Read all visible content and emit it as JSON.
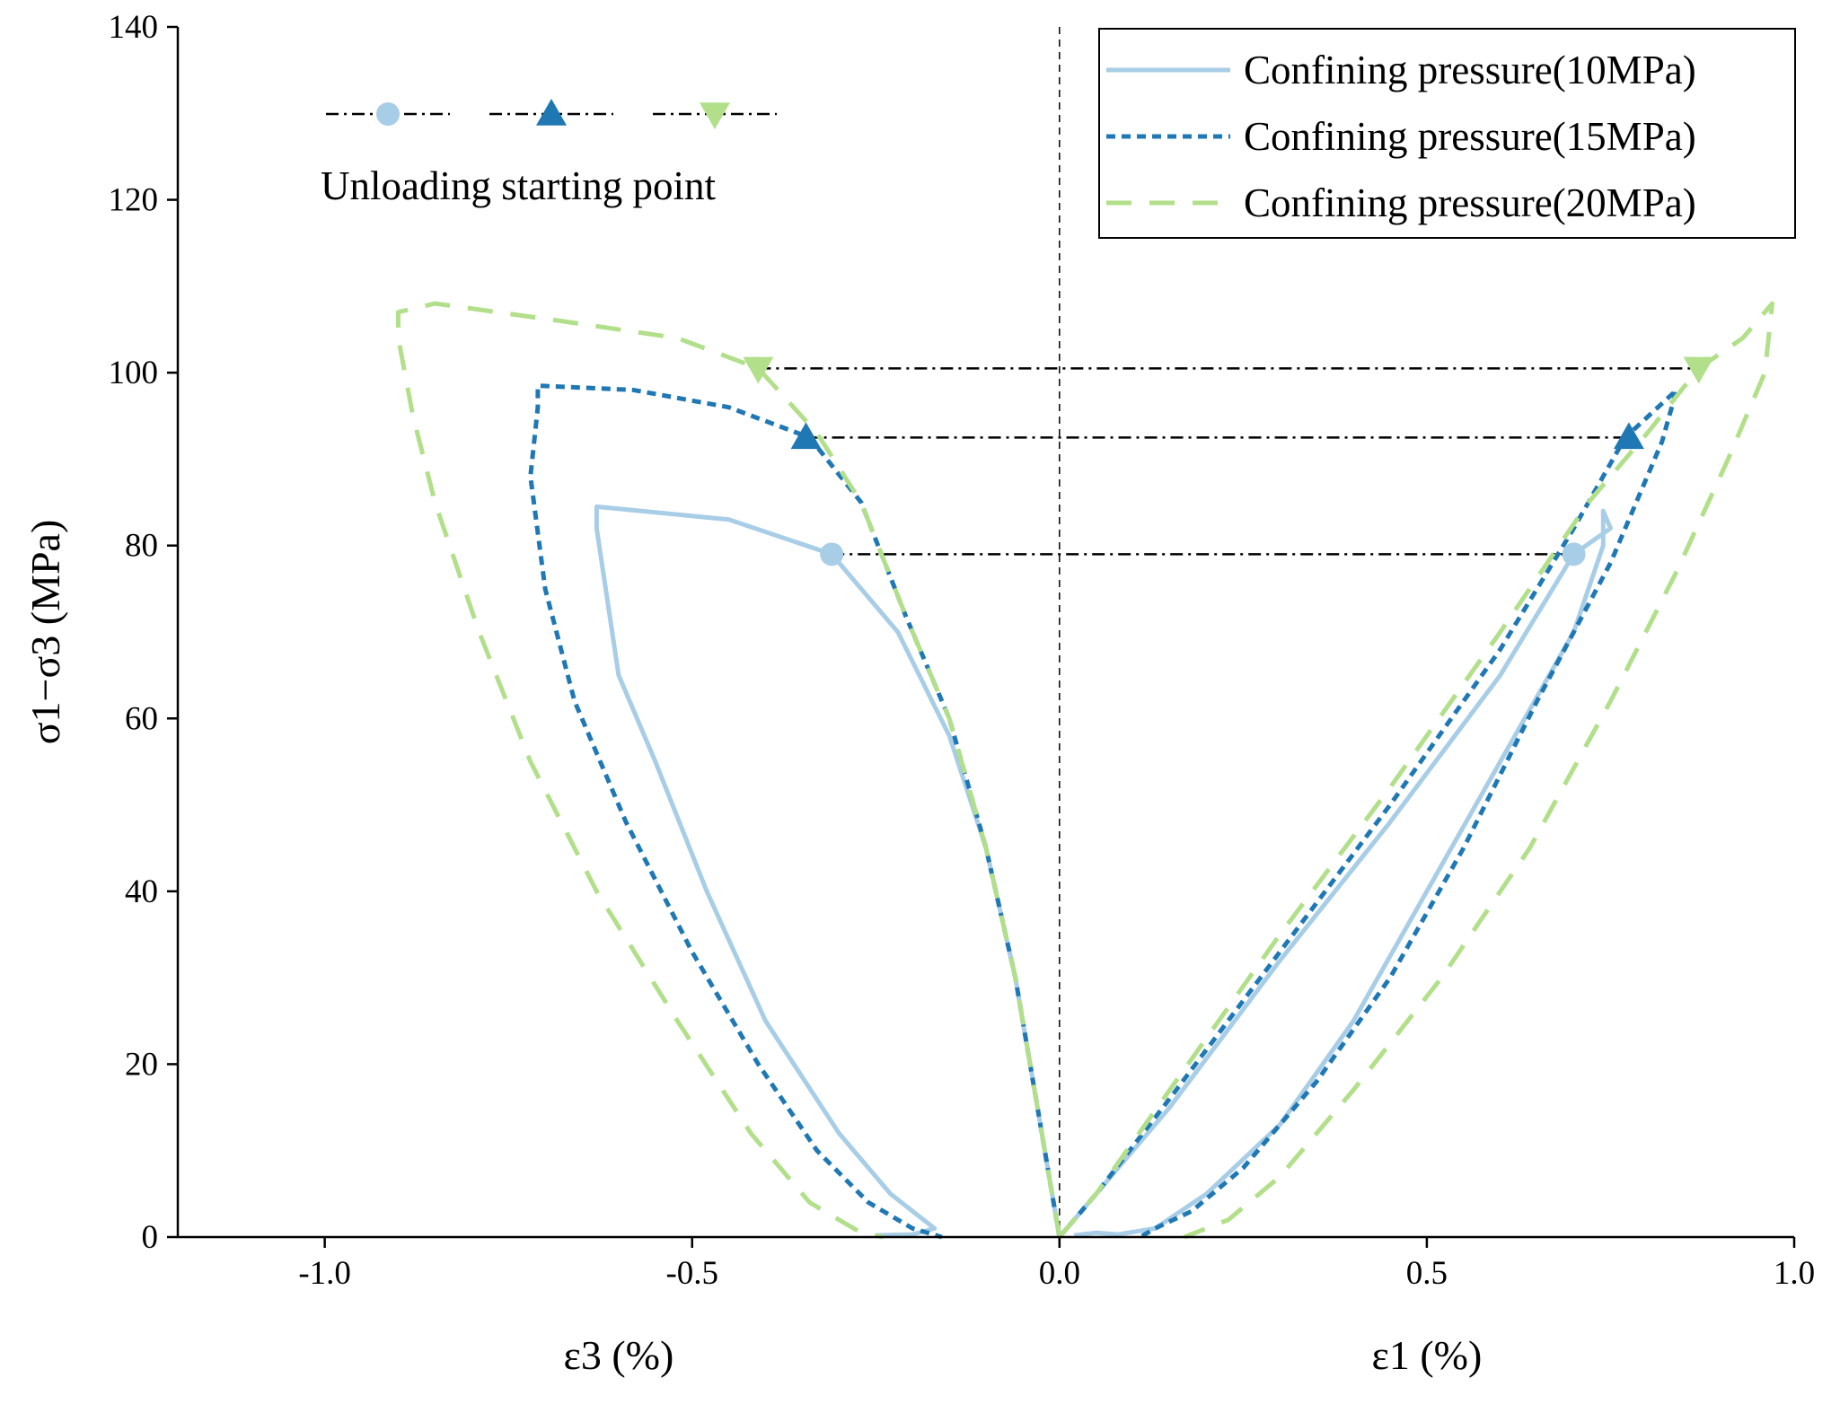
{
  "chart_data": {
    "type": "line",
    "title": "",
    "xlim": [
      -1.2,
      1.0
    ],
    "ylim": [
      0,
      140
    ],
    "xticks": [
      "-1.0",
      "-0.5",
      "0.0",
      "0.5",
      "1.0"
    ],
    "xtick_values": [
      -1.0,
      -0.5,
      0.0,
      0.5,
      1.0
    ],
    "yticks": [
      "0",
      "20",
      "40",
      "60",
      "80",
      "100",
      "120",
      "140"
    ],
    "ytick_values": [
      0,
      20,
      40,
      60,
      80,
      100,
      120,
      140
    ],
    "ylabel": "σ1−σ3 (MPa)",
    "xlabel_left": "ε3 (%)",
    "xlabel_right": "ε1 (%)",
    "legend_position": "top-right",
    "zero_line_x": 0,
    "colors": {
      "light_blue": "#a8cde6",
      "dark_blue": "#1f78b4",
      "light_green": "#b2df8a",
      "ref_line": "#000000"
    },
    "series": [
      {
        "name": "Confining pressure(10MPa)",
        "color": "#a8cde6",
        "dash": "solid",
        "segments": [
          [
            [
              0.0,
              0
            ],
            [
              0.05,
              5
            ],
            [
              0.15,
              15
            ],
            [
              0.3,
              32
            ],
            [
              0.45,
              48
            ],
            [
              0.6,
              65
            ],
            [
              0.7,
              79
            ],
            [
              0.75,
              82
            ],
            [
              0.74,
              84
            ],
            [
              0.74,
              80
            ],
            [
              0.7,
              70
            ],
            [
              0.6,
              55
            ],
            [
              0.5,
              40
            ],
            [
              0.4,
              25
            ],
            [
              0.3,
              13
            ],
            [
              0.2,
              5
            ],
            [
              0.13,
              1
            ],
            [
              0.08,
              0.3
            ],
            [
              0.05,
              0.5
            ],
            [
              0.02,
              0.2
            ]
          ],
          [
            [
              0.0,
              0
            ],
            [
              -0.01,
              5
            ],
            [
              -0.03,
              15
            ],
            [
              -0.06,
              30
            ],
            [
              -0.1,
              45
            ],
            [
              -0.15,
              58
            ],
            [
              -0.22,
              70
            ],
            [
              -0.31,
              79
            ],
            [
              -0.45,
              83
            ],
            [
              -0.63,
              84.5
            ],
            [
              -0.63,
              82
            ],
            [
              -0.6,
              65
            ],
            [
              -0.55,
              55
            ],
            [
              -0.48,
              40
            ],
            [
              -0.4,
              25
            ],
            [
              -0.3,
              12
            ],
            [
              -0.23,
              5
            ],
            [
              -0.17,
              1
            ],
            [
              -0.2,
              0.3
            ],
            [
              -0.25,
              0.2
            ]
          ]
        ]
      },
      {
        "name": "Confining pressure(15MPa)",
        "color": "#1f78b4",
        "dash": "short",
        "segments": [
          [
            [
              0.0,
              0
            ],
            [
              0.05,
              5
            ],
            [
              0.15,
              16
            ],
            [
              0.3,
              33
            ],
            [
              0.45,
              50
            ],
            [
              0.6,
              68
            ],
            [
              0.7,
              82
            ],
            [
              0.77,
              92.5
            ],
            [
              0.84,
              98
            ],
            [
              0.82,
              92
            ],
            [
              0.75,
              78
            ],
            [
              0.65,
              62
            ],
            [
              0.55,
              45
            ],
            [
              0.45,
              30
            ],
            [
              0.35,
              18
            ],
            [
              0.25,
              8
            ],
            [
              0.18,
              3
            ],
            [
              0.13,
              1
            ],
            [
              0.11,
              0
            ]
          ],
          [
            [
              0.0,
              0
            ],
            [
              -0.01,
              5
            ],
            [
              -0.03,
              15
            ],
            [
              -0.06,
              30
            ],
            [
              -0.1,
              45
            ],
            [
              -0.15,
              60
            ],
            [
              -0.21,
              72
            ],
            [
              -0.27,
              85
            ],
            [
              -0.34,
              92.5
            ],
            [
              -0.45,
              96
            ],
            [
              -0.58,
              98
            ],
            [
              -0.71,
              98.5
            ],
            [
              -0.71,
              96
            ],
            [
              -0.72,
              88
            ],
            [
              -0.7,
              75
            ],
            [
              -0.66,
              62
            ],
            [
              -0.59,
              48
            ],
            [
              -0.5,
              33
            ],
            [
              -0.41,
              20
            ],
            [
              -0.33,
              10
            ],
            [
              -0.26,
              4
            ],
            [
              -0.2,
              1
            ],
            [
              -0.16,
              0
            ]
          ]
        ]
      },
      {
        "name": "Confining pressure(20MPa)",
        "color": "#b2df8a",
        "dash": "long",
        "segments": [
          [
            [
              0.0,
              0
            ],
            [
              0.05,
              5
            ],
            [
              0.15,
              17
            ],
            [
              0.3,
              35
            ],
            [
              0.45,
              52
            ],
            [
              0.6,
              70
            ],
            [
              0.72,
              85
            ],
            [
              0.8,
              93
            ],
            [
              0.87,
              100.5
            ],
            [
              0.93,
              104
            ],
            [
              0.97,
              108
            ],
            [
              0.96,
              100
            ],
            [
              0.91,
              90
            ],
            [
              0.84,
              77
            ],
            [
              0.75,
              62
            ],
            [
              0.64,
              45
            ],
            [
              0.52,
              30
            ],
            [
              0.4,
              17
            ],
            [
              0.3,
              7
            ],
            [
              0.23,
              2
            ],
            [
              0.17,
              0
            ]
          ],
          [
            [
              0.0,
              0
            ],
            [
              -0.01,
              5
            ],
            [
              -0.03,
              15
            ],
            [
              -0.06,
              30
            ],
            [
              -0.1,
              45
            ],
            [
              -0.15,
              60
            ],
            [
              -0.21,
              72
            ],
            [
              -0.27,
              85
            ],
            [
              -0.33,
              93
            ],
            [
              -0.41,
              100.5
            ],
            [
              -0.52,
              104
            ],
            [
              -0.68,
              106
            ],
            [
              -0.85,
              108
            ],
            [
              -0.9,
              107
            ],
            [
              -0.9,
              104
            ],
            [
              -0.88,
              95
            ],
            [
              -0.85,
              85
            ],
            [
              -0.79,
              70
            ],
            [
              -0.72,
              55
            ],
            [
              -0.63,
              40
            ],
            [
              -0.52,
              25
            ],
            [
              -0.42,
              12
            ],
            [
              -0.34,
              4
            ],
            [
              -0.27,
              0.5
            ],
            [
              -0.24,
              0
            ]
          ]
        ]
      }
    ],
    "unloading_points": [
      {
        "series": "Confining pressure(10MPa)",
        "shape": "circle",
        "color": "#a8cde6",
        "stress": 79,
        "eps3": -0.31,
        "eps1": 0.7
      },
      {
        "series": "Confining pressure(15MPa)",
        "shape": "triangle-up",
        "color": "#1f78b4",
        "stress": 92.5,
        "eps3": -0.345,
        "eps1": 0.775
      },
      {
        "series": "Confining pressure(20MPa)",
        "shape": "triangle-down",
        "color": "#b2df8a",
        "stress": 100.5,
        "eps3": -0.41,
        "eps1": 0.87
      }
    ],
    "marker_legend_caption": "Unloading starting point"
  }
}
